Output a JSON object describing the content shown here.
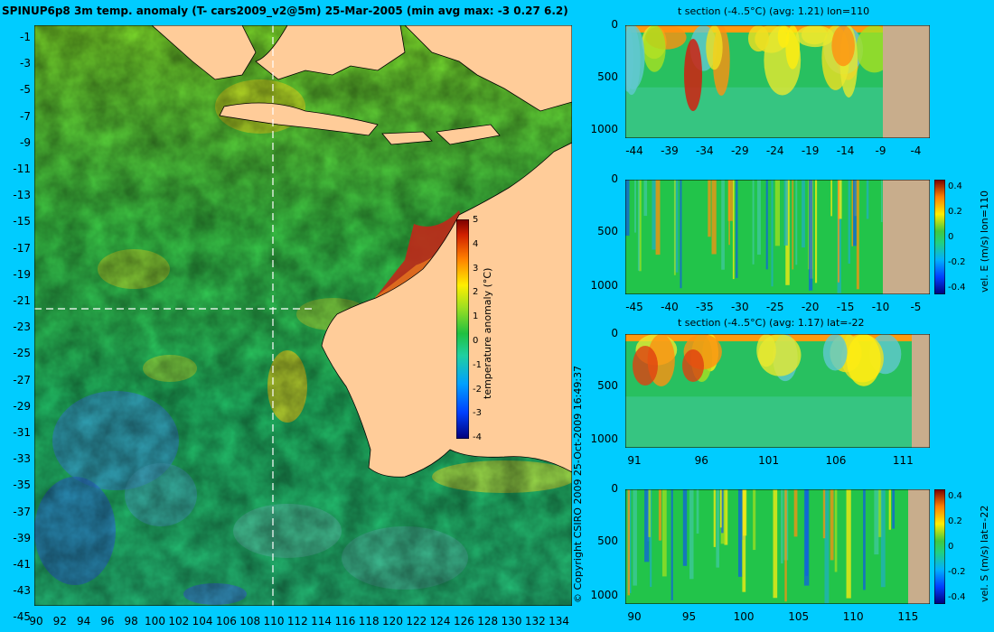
{
  "main_title": "SPINUP6p8 3m temp. anomaly (T- cars2009_v2@5m) 25-Mar-2005 (min avg max: -3 0.27 6.2)",
  "copyright": "© Copyright CSIRO 2009   25-Oct-2009 16:49:37",
  "colors": {
    "background": "#00ccff",
    "land": "#ffcc99",
    "land_section": "#c8ad8c"
  },
  "chart_data": [
    {
      "type": "heatmap",
      "name": "map",
      "x_ticks": [
        "90",
        "92",
        "94",
        "96",
        "98",
        "100",
        "102",
        "104",
        "106",
        "108",
        "110",
        "112",
        "114",
        "116",
        "118",
        "120",
        "122",
        "124",
        "126",
        "128",
        "130",
        "132",
        "134"
      ],
      "y_ticks": [
        "-1",
        "-3",
        "-5",
        "-7",
        "-9",
        "-11",
        "-13",
        "-15",
        "-17",
        "-19",
        "-21",
        "-23",
        "-25",
        "-27",
        "-29",
        "-31",
        "-33",
        "-35",
        "-37",
        "-39",
        "-41",
        "-43",
        "-45"
      ],
      "xlim": [
        90,
        135
      ],
      "ylim": [
        -45,
        0
      ],
      "crosshair": {
        "lon": 110,
        "lat": -22
      },
      "colorbar": {
        "label": "temperature anomaly (°C)",
        "ticks": [
          "5",
          "4",
          "3",
          "2",
          "1",
          "0",
          "-1",
          "-2",
          "-3",
          "-4"
        ],
        "range": [
          -4,
          5
        ]
      }
    },
    {
      "type": "heatmap",
      "name": "t-section-lon",
      "title": "t section (-4..5°C) (avg: 1.21) lon=110",
      "x_ticks": [
        "-44",
        "-39",
        "-34",
        "-29",
        "-24",
        "-19",
        "-14",
        "-9",
        "-4"
      ],
      "y_ticks": [
        "0",
        "500",
        "1000"
      ]
    },
    {
      "type": "heatmap",
      "name": "vel-e-section",
      "x_ticks": [
        "-45",
        "-40",
        "-35",
        "-30",
        "-25",
        "-20",
        "-15",
        "-10",
        "-5"
      ],
      "y_ticks": [
        "0",
        "500",
        "1000"
      ],
      "colorbar": {
        "label": "vel. E (m/s) lon=110",
        "ticks": [
          "0.4",
          "0.2",
          "0",
          "-0.2",
          "-0.4"
        ]
      }
    },
    {
      "type": "heatmap",
      "name": "t-section-lat",
      "title": "t section (-4..5°C) (avg: 1.17) lat=-22",
      "x_ticks": [
        "91",
        "96",
        "101",
        "106",
        "111"
      ],
      "y_ticks": [
        "0",
        "500",
        "1000"
      ]
    },
    {
      "type": "heatmap",
      "name": "vel-s-section",
      "x_ticks": [
        "90",
        "95",
        "100",
        "105",
        "110",
        "115"
      ],
      "y_ticks": [
        "0",
        "500",
        "1000"
      ],
      "colorbar": {
        "label": "vel. S (m/s) lat=-22",
        "ticks": [
          "0.4",
          "0.2",
          "0",
          "-0.2",
          "-0.4"
        ]
      }
    }
  ]
}
